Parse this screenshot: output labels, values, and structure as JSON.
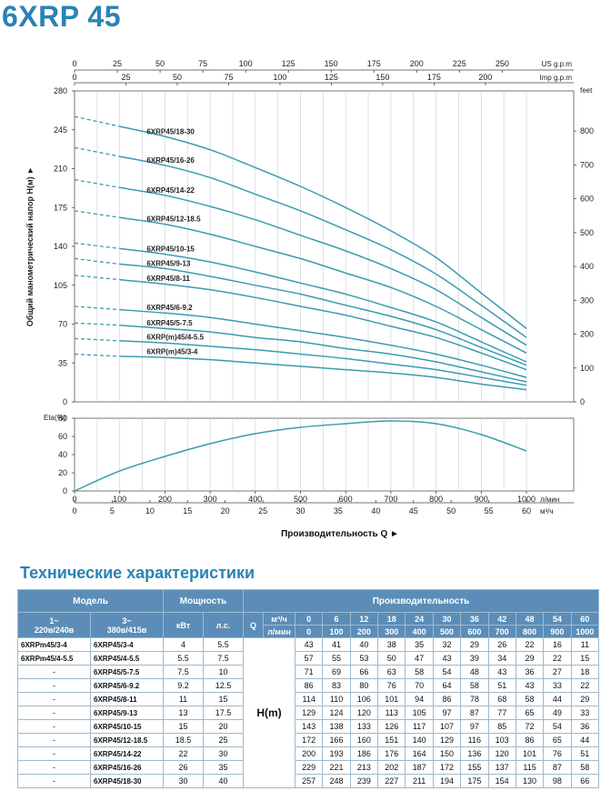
{
  "page_title": "6XRP 45",
  "chart_data": [
    {
      "type": "line",
      "x_top_us": {
        "label": "US g.p.m",
        "ticks": [
          "0",
          "25",
          "50",
          "75",
          "100",
          "125",
          "150",
          "175",
          "200",
          "225",
          "250"
        ],
        "max": 265
      },
      "x_top_imp": {
        "label": "Imp g.p.m",
        "ticks": [
          "0",
          "25",
          "50",
          "75",
          "100",
          "125",
          "150",
          "175",
          "200"
        ],
        "max": 220
      },
      "ylabel": "Общий манометрический напор H(м) ►",
      "ylim": [
        0,
        280
      ],
      "yticks": [
        "0",
        "35",
        "70",
        "105",
        "140",
        "175",
        "210",
        "245",
        "280"
      ],
      "y2label": "feet",
      "y2lim": [
        0,
        918.6
      ],
      "y2ticks": [
        "0",
        "100",
        "200",
        "300",
        "400",
        "500",
        "600",
        "700",
        "800"
      ],
      "xlim": [
        0,
        1000
      ],
      "x": [
        0,
        100,
        200,
        300,
        400,
        500,
        600,
        700,
        800,
        900,
        1000
      ],
      "dashed_until": 100,
      "series": [
        {
          "name": "6XRP45/18-30",
          "values": [
            257,
            248,
            239,
            227,
            211,
            194,
            175,
            154,
            130,
            98,
            66
          ]
        },
        {
          "name": "6XRP45/16-26",
          "values": [
            229,
            221,
            213,
            202,
            187,
            172,
            155,
            137,
            115,
            87,
            58
          ]
        },
        {
          "name": "6XRP45/14-22",
          "values": [
            200,
            193,
            186,
            176,
            164,
            150,
            136,
            120,
            101,
            76,
            51
          ]
        },
        {
          "name": "6XRP45/12-18.5",
          "values": [
            172,
            166,
            160,
            151,
            140,
            129,
            116,
            103,
            86,
            65,
            44
          ]
        },
        {
          "name": "6XRP45/10-15",
          "values": [
            143,
            138,
            133,
            126,
            117,
            107,
            97,
            85,
            72,
            54,
            36
          ]
        },
        {
          "name": "6XRP45/9-13",
          "values": [
            129,
            124,
            120,
            113,
            105,
            97,
            87,
            77,
            65,
            49,
            33
          ]
        },
        {
          "name": "6XRP45/8-11",
          "values": [
            114,
            110,
            106,
            101,
            94,
            86,
            78,
            68,
            58,
            44,
            29
          ]
        },
        {
          "name": "6XRP45/6-9.2",
          "values": [
            86,
            83,
            80,
            76,
            70,
            64,
            58,
            51,
            43,
            33,
            22
          ]
        },
        {
          "name": "6XRP45/5-7.5",
          "values": [
            71,
            69,
            66,
            63,
            58,
            54,
            48,
            43,
            36,
            27,
            18
          ]
        },
        {
          "name": "6XRP(m)45/4-5.5",
          "values": [
            57,
            55,
            53,
            50,
            47,
            43,
            39,
            34,
            29,
            22,
            15
          ]
        },
        {
          "name": "6XRP(m)45/3-4",
          "values": [
            43,
            41,
            40,
            38,
            35,
            32,
            29,
            26,
            22,
            16,
            11
          ]
        }
      ]
    },
    {
      "type": "line",
      "ylabel": "Eta(%)",
      "ylim": [
        0,
        80
      ],
      "yticks": [
        "0",
        "20",
        "40",
        "60",
        "80"
      ],
      "xlim": [
        0,
        1000
      ],
      "x": [
        0,
        100,
        200,
        300,
        400,
        500,
        600,
        700,
        800,
        900,
        1000
      ],
      "values": [
        0,
        22,
        38,
        52,
        63,
        70,
        74,
        77,
        74,
        62,
        44
      ],
      "x_lmin": {
        "label": "л/мин",
        "ticks": [
          "0",
          "100",
          "200",
          "300",
          "400",
          "500",
          "600",
          "700",
          "800",
          "900",
          "1000"
        ]
      },
      "x_m3h": {
        "label": "м³/ч",
        "ticks": [
          "0",
          "5",
          "10",
          "15",
          "20",
          "25",
          "30",
          "35",
          "40",
          "45",
          "50",
          "55",
          "60"
        ],
        "max": 60
      },
      "xlabel": "Производительность Q  ►"
    }
  ],
  "curve_labels": [
    "6XRP45/18-30",
    "6XRP45/16-26",
    "6XRP45/14-22",
    "6XRP45/12-18.5",
    "6XRP45/10-15",
    "6XRP45/9-13",
    "6XRP45/8-11",
    "6XRP45/6-9.2",
    "6XRP45/5-7.5",
    "6XRP(m)45/4-5.5",
    "6XRP(m)45/3-4"
  ],
  "section_title": "Технические характеристики",
  "table": {
    "h_model": "Модель",
    "h_power": "Мощность",
    "h_perf": "Производительность",
    "h_1ph": "1~\n220в/240в",
    "h_3ph": "3~\n380в/415в",
    "h_kw": "кВт",
    "h_hp": "л.с.",
    "h_q": "Q",
    "h_m3h": "м³/ч",
    "h_lmin": "л/мин",
    "h_head": "H(m)",
    "q_m3h": [
      "0",
      "6",
      "12",
      "18",
      "24",
      "30",
      "36",
      "42",
      "48",
      "54",
      "60"
    ],
    "q_lmin": [
      "0",
      "100",
      "200",
      "300",
      "400",
      "500",
      "600",
      "700",
      "800",
      "900",
      "1000"
    ],
    "rows": [
      {
        "m1": "6XRPm45/3-4",
        "m3": "6XRP45/3-4",
        "kw": "4",
        "hp": "5.5",
        "h": [
          "43",
          "41",
          "40",
          "38",
          "35",
          "32",
          "29",
          "26",
          "22",
          "16",
          "11"
        ]
      },
      {
        "m1": "6XRPm45/4-5.5",
        "m3": "6XRP45/4-5.5",
        "kw": "5.5",
        "hp": "7.5",
        "h": [
          "57",
          "55",
          "53",
          "50",
          "47",
          "43",
          "39",
          "34",
          "29",
          "22",
          "15"
        ]
      },
      {
        "m1": "-",
        "m3": "6XRP45/5-7.5",
        "kw": "7.5",
        "hp": "10",
        "h": [
          "71",
          "69",
          "66",
          "63",
          "58",
          "54",
          "48",
          "43",
          "36",
          "27",
          "18"
        ]
      },
      {
        "m1": "-",
        "m3": "6XRP45/6-9.2",
        "kw": "9.2",
        "hp": "12.5",
        "h": [
          "86",
          "83",
          "80",
          "76",
          "70",
          "64",
          "58",
          "51",
          "43",
          "33",
          "22"
        ]
      },
      {
        "m1": "-",
        "m3": "6XRP45/8-11",
        "kw": "11",
        "hp": "15",
        "h": [
          "114",
          "110",
          "106",
          "101",
          "94",
          "86",
          "78",
          "68",
          "58",
          "44",
          "29"
        ]
      },
      {
        "m1": "-",
        "m3": "6XRP45/9-13",
        "kw": "13",
        "hp": "17.5",
        "h": [
          "129",
          "124",
          "120",
          "113",
          "105",
          "97",
          "87",
          "77",
          "65",
          "49",
          "33"
        ]
      },
      {
        "m1": "-",
        "m3": "6XRP45/10-15",
        "kw": "15",
        "hp": "20",
        "h": [
          "143",
          "138",
          "133",
          "126",
          "117",
          "107",
          "97",
          "85",
          "72",
          "54",
          "36"
        ]
      },
      {
        "m1": "-",
        "m3": "6XRP45/12-18.5",
        "kw": "18.5",
        "hp": "25",
        "h": [
          "172",
          "166",
          "160",
          "151",
          "140",
          "129",
          "116",
          "103",
          "86",
          "65",
          "44"
        ]
      },
      {
        "m1": "-",
        "m3": "6XRP45/14-22",
        "kw": "22",
        "hp": "30",
        "h": [
          "200",
          "193",
          "186",
          "176",
          "164",
          "150",
          "136",
          "120",
          "101",
          "76",
          "51"
        ]
      },
      {
        "m1": "-",
        "m3": "6XRP45/16-26",
        "kw": "26",
        "hp": "35",
        "h": [
          "229",
          "221",
          "213",
          "202",
          "187",
          "172",
          "155",
          "137",
          "115",
          "87",
          "58"
        ]
      },
      {
        "m1": "-",
        "m3": "6XRP45/18-30",
        "kw": "30",
        "hp": "40",
        "h": [
          "257",
          "248",
          "239",
          "227",
          "211",
          "194",
          "175",
          "154",
          "130",
          "98",
          "66"
        ]
      }
    ]
  },
  "colors": {
    "title": "#2a83b5",
    "curve": "#3a9bb0",
    "header_bg": "#5b8db8",
    "grid": "#cfd4d8"
  }
}
